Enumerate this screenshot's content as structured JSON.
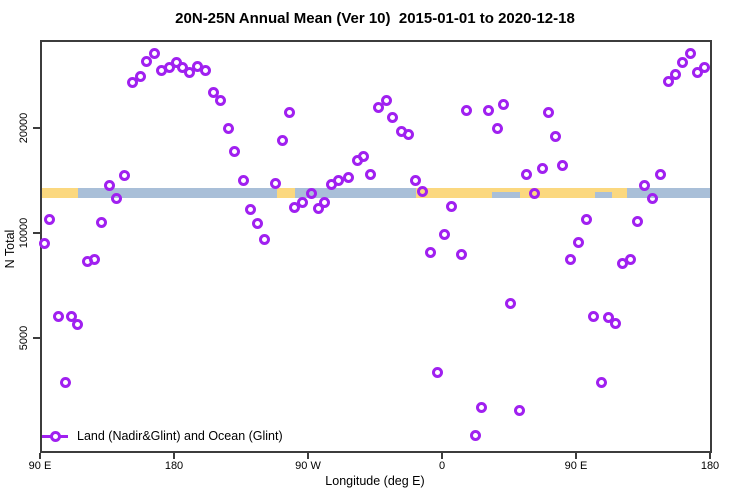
{
  "header": {
    "title": "20N-25N Annual Mean (Ver 10)  2015-01-01 to 2020-12-18"
  },
  "chart_data": {
    "type": "scatter",
    "title": "20N-25N Annual Mean (Ver 10)  2015-01-01 to 2020-12-18",
    "xlabel": "Longitude (deg E)",
    "ylabel": "N Total",
    "x_axis": {
      "range_deg": [
        90,
        540
      ],
      "ticks": [
        {
          "deg": 90,
          "label": "90 E"
        },
        {
          "deg": 180,
          "label": "180"
        },
        {
          "deg": 270,
          "label": "90 W"
        },
        {
          "deg": 360,
          "label": "0"
        },
        {
          "deg": 450,
          "label": "90 E"
        },
        {
          "deg": 540,
          "label": "180"
        }
      ]
    },
    "y_axis": {
      "scale": "log",
      "range": [
        2350,
        35500
      ],
      "ticks": [
        {
          "value": 5000,
          "label": "5000"
        },
        {
          "value": 10000,
          "label": "10000"
        },
        {
          "value": 20000,
          "label": "20000"
        }
      ]
    },
    "legend": {
      "label": "Land (Nadir&Glint) and Ocean (Glint)",
      "position": "bottom-left-inside"
    },
    "marker": {
      "shape": "open-circle",
      "color": "#a020f0"
    },
    "map_band": {
      "ocean_color": "#a9bfd8",
      "land_color": "#fbd87f",
      "n_range": [
        12600,
        13460
      ],
      "land_segments_deg": [
        [
          90,
          115.5
        ],
        [
          249.5,
          261.6
        ],
        [
          342.6,
          484.0
        ]
      ],
      "ocean_gaps_deg": [
        [
          393.5,
          412.4
        ],
        [
          462.5,
          474.0
        ]
      ]
    },
    "series": [
      {
        "name": "Land (Nadir&Glint) and Ocean (Glint)",
        "color": "#a020f0",
        "points": [
          [
            92.7,
            9300
          ],
          [
            96.7,
            10900
          ],
          [
            102.1,
            5780
          ],
          [
            106.8,
            3720
          ],
          [
            111.4,
            5780
          ],
          [
            115.5,
            5480
          ],
          [
            122.2,
            8260
          ],
          [
            126.9,
            8370
          ],
          [
            131.5,
            10750
          ],
          [
            136.9,
            13640
          ],
          [
            141.6,
            12520
          ],
          [
            147.0,
            14570
          ],
          [
            152.3,
            27090
          ],
          [
            157.7,
            28010
          ],
          [
            161.7,
            30930
          ],
          [
            167.1,
            32610
          ],
          [
            171.8,
            29140
          ],
          [
            177.1,
            29750
          ],
          [
            181.8,
            30720
          ],
          [
            185.8,
            29750
          ],
          [
            190.5,
            28940
          ],
          [
            195.9,
            29950
          ],
          [
            201.2,
            29140
          ],
          [
            206.6,
            25350
          ],
          [
            211.3,
            24040
          ],
          [
            216.6,
            20000
          ],
          [
            220.7,
            17070
          ],
          [
            226.7,
            14100
          ],
          [
            231.4,
            11640
          ],
          [
            236.1,
            10680
          ],
          [
            240.8,
            9610
          ],
          [
            248.2,
            13820
          ],
          [
            252.8,
            18360
          ],
          [
            257.5,
            22220
          ],
          [
            260.9,
            11870
          ],
          [
            266.3,
            12270
          ],
          [
            272.3,
            13020
          ],
          [
            277.0,
            11720
          ],
          [
            281.0,
            12270
          ],
          [
            285.7,
            13730
          ],
          [
            290.4,
            14100
          ],
          [
            297.1,
            14380
          ],
          [
            303.1,
            16090
          ],
          [
            307.1,
            16520
          ],
          [
            311.8,
            14670
          ],
          [
            317.2,
            22970
          ],
          [
            322.6,
            24040
          ],
          [
            326.6,
            21500
          ],
          [
            332.6,
            19480
          ],
          [
            337.3,
            19100
          ],
          [
            342.0,
            14100
          ],
          [
            346.7,
            13110
          ],
          [
            352.0,
            8820
          ],
          [
            356.7,
            3970
          ],
          [
            361.4,
            9870
          ],
          [
            366.1,
            11950
          ],
          [
            372.8,
            8650
          ],
          [
            376.2,
            22510
          ],
          [
            382.2,
            2620
          ],
          [
            386.2,
            3170
          ],
          [
            390.9,
            22510
          ],
          [
            397.6,
            20000
          ],
          [
            401.0,
            23290
          ],
          [
            406.3,
            6260
          ],
          [
            412.3,
            3090
          ],
          [
            417.0,
            14760
          ],
          [
            422.4,
            13020
          ],
          [
            427.8,
            15260
          ],
          [
            431.8,
            22220
          ],
          [
            436.5,
            18970
          ],
          [
            441.2,
            15660
          ],
          [
            446.5,
            8420
          ],
          [
            451.8,
            9420
          ],
          [
            457.2,
            10900
          ],
          [
            461.9,
            5780
          ],
          [
            467.3,
            3720
          ],
          [
            472.0,
            5740
          ],
          [
            476.7,
            5520
          ],
          [
            481.3,
            8200
          ],
          [
            486.7,
            8370
          ],
          [
            491.4,
            10820
          ],
          [
            496.1,
            13640
          ],
          [
            501.4,
            12520
          ],
          [
            506.8,
            14670
          ],
          [
            512.2,
            27270
          ],
          [
            516.9,
            28390
          ],
          [
            521.6,
            30720
          ],
          [
            527.0,
            32610
          ],
          [
            531.7,
            28940
          ],
          [
            536.4,
            29750
          ]
        ]
      }
    ]
  }
}
